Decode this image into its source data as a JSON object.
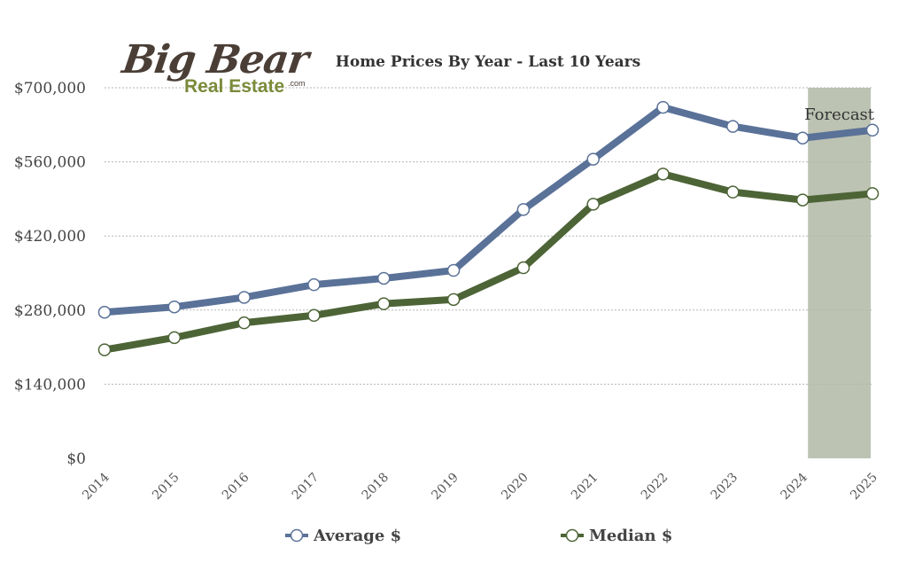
{
  "logo": {
    "line1": "Big Bear",
    "line2": "Real Estate",
    "suffix": ".com",
    "color_dark": "#4a3e36",
    "color_green": "#7a8b3a"
  },
  "chart_data": {
    "type": "line",
    "title": "Home Prices By Year - Last 10 Years",
    "xlabel": "",
    "ylabel": "",
    "categories": [
      "2014",
      "2015",
      "2016",
      "2017",
      "2018",
      "2019",
      "2020",
      "2021",
      "2022",
      "2023",
      "2024",
      "2025"
    ],
    "ylim": [
      0,
      700000
    ],
    "yticks": [
      0,
      140000,
      280000,
      420000,
      560000,
      700000
    ],
    "ytick_labels": [
      "$0",
      "$140,000",
      "$280,000",
      "$420,000",
      "$560,000",
      "$700,000"
    ],
    "grid": true,
    "legend_placement": "bottom",
    "series": [
      {
        "name": "Average $",
        "color": "#5a7298",
        "values": [
          276000,
          286000,
          304000,
          328000,
          340000,
          355000,
          470000,
          565000,
          663000,
          627000,
          605000,
          620000
        ]
      },
      {
        "name": "Median $",
        "color": "#4d6437",
        "values": [
          205000,
          228000,
          256000,
          270000,
          292000,
          300000,
          360000,
          480000,
          537000,
          503000,
          488000,
          500000
        ]
      }
    ],
    "forecast": {
      "label": "Forecast",
      "from": "2024",
      "to": "2025",
      "color": "#bcc3b2"
    }
  }
}
